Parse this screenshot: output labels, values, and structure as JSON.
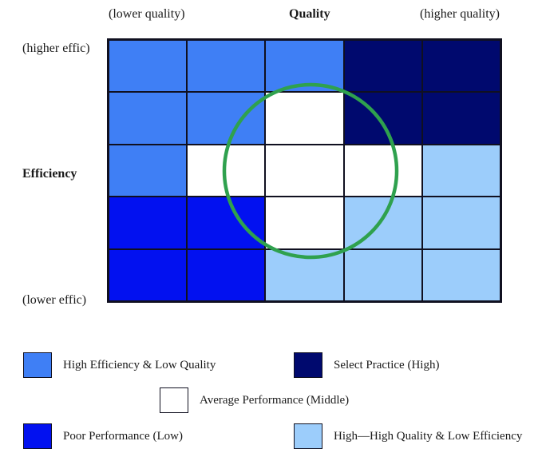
{
  "labels": {
    "top_left": "(lower quality)",
    "top_center": "Quality",
    "top_right": "(higher quality)",
    "left_top": "(higher effic)",
    "left_middle": "Efficiency",
    "left_bottom": "(lower effic)"
  },
  "colors": {
    "high_eff_low_q": "#3f7ff5",
    "select_practice": "#00096e",
    "average": "#ffffff",
    "poor": "#0211f0",
    "high_q_low_eff": "#9ccdfb",
    "circle": "#2fa14e"
  },
  "grid": [
    [
      "high_eff_low_q",
      "high_eff_low_q",
      "high_eff_low_q",
      "select_practice",
      "select_practice"
    ],
    [
      "high_eff_low_q",
      "high_eff_low_q",
      "average",
      "select_practice",
      "select_practice"
    ],
    [
      "high_eff_low_q",
      "average",
      "average",
      "average",
      "high_q_low_eff"
    ],
    [
      "poor",
      "poor",
      "average",
      "high_q_low_eff",
      "high_q_low_eff"
    ],
    [
      "poor",
      "poor",
      "high_q_low_eff",
      "high_q_low_eff",
      "high_q_low_eff"
    ]
  ],
  "legend": {
    "high_eff_low_q": "High Efficiency & Low Quality",
    "select_practice": "Select Practice (High)",
    "average": "Average Performance (Middle)",
    "poor": "Poor Performance (Low)",
    "high_q_low_eff": "High—High Quality & Low Efficiency"
  }
}
